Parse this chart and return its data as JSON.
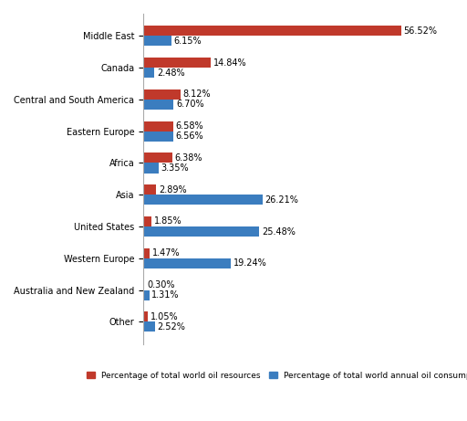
{
  "categories": [
    "Middle East",
    "Canada",
    "Central and South America",
    "Eastern Europe",
    "Africa",
    "Asia",
    "United States",
    "Western Europe",
    "Australia and New Zealand",
    "Other"
  ],
  "resources": [
    56.52,
    14.84,
    8.12,
    6.58,
    6.38,
    2.89,
    1.85,
    1.47,
    0.3,
    1.05
  ],
  "consumption": [
    6.15,
    2.48,
    6.7,
    6.56,
    3.35,
    26.21,
    25.48,
    19.24,
    1.31,
    2.52
  ],
  "resource_color": "#C0392B",
  "consumption_color": "#3B7DBF",
  "background_color": "#FFFFFF",
  "legend_resource": "Percentage of total world oil resources",
  "legend_consumption": "Percentage of total world annual oil consumption",
  "bar_height": 0.32,
  "xlim": [
    0,
    63
  ],
  "figsize": [
    5.12,
    4.61
  ],
  "dpi": 100,
  "label_fontsize": 7.0,
  "tick_fontsize": 7.0,
  "legend_fontsize": 6.5
}
